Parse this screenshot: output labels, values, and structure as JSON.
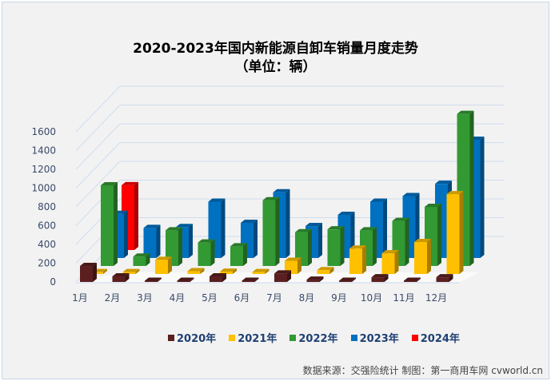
{
  "chart_data": {
    "type": "bar",
    "style": "3d-clustered-depth",
    "title": "2020-2023年国内新能源自卸车销量月度走势",
    "subtitle": "（单位：辆）",
    "categories": [
      "1月",
      "2月",
      "3月",
      "4月",
      "5月",
      "6月",
      "7月",
      "8月",
      "9月",
      "10月",
      "11月",
      "12月"
    ],
    "ylim": [
      0,
      1600
    ],
    "yticks": [
      0,
      200,
      400,
      600,
      800,
      1000,
      1200,
      1400,
      1600
    ],
    "grid": true,
    "legend_position": "bottom",
    "series": [
      {
        "name": "2020年",
        "color": "#5c1f1f",
        "values": [
          170,
          60,
          5,
          5,
          60,
          5,
          90,
          25,
          5,
          50,
          5,
          50
        ]
      },
      {
        "name": "2021年",
        "color": "#ffc000",
        "values": [
          20,
          20,
          150,
          30,
          25,
          20,
          140,
          40,
          270,
          220,
          340,
          850
        ]
      },
      {
        "name": "2022年",
        "color": "#339933",
        "values": [
          860,
          100,
          380,
          250,
          210,
          700,
          360,
          390,
          380,
          480,
          630,
          1620
        ]
      },
      {
        "name": "2023年",
        "color": "#0070c0",
        "values": [
          470,
          320,
          330,
          600,
          375,
          700,
          340,
          460,
          600,
          660,
          790,
          1260
        ]
      },
      {
        "name": "2024年",
        "color": "#ff0000",
        "values": [
          690,
          null,
          null,
          null,
          null,
          null,
          null,
          null,
          null,
          null,
          null,
          null
        ]
      }
    ]
  },
  "source": "数据来源：交强险统计  制图：第一商用车网 cvworld.cn"
}
